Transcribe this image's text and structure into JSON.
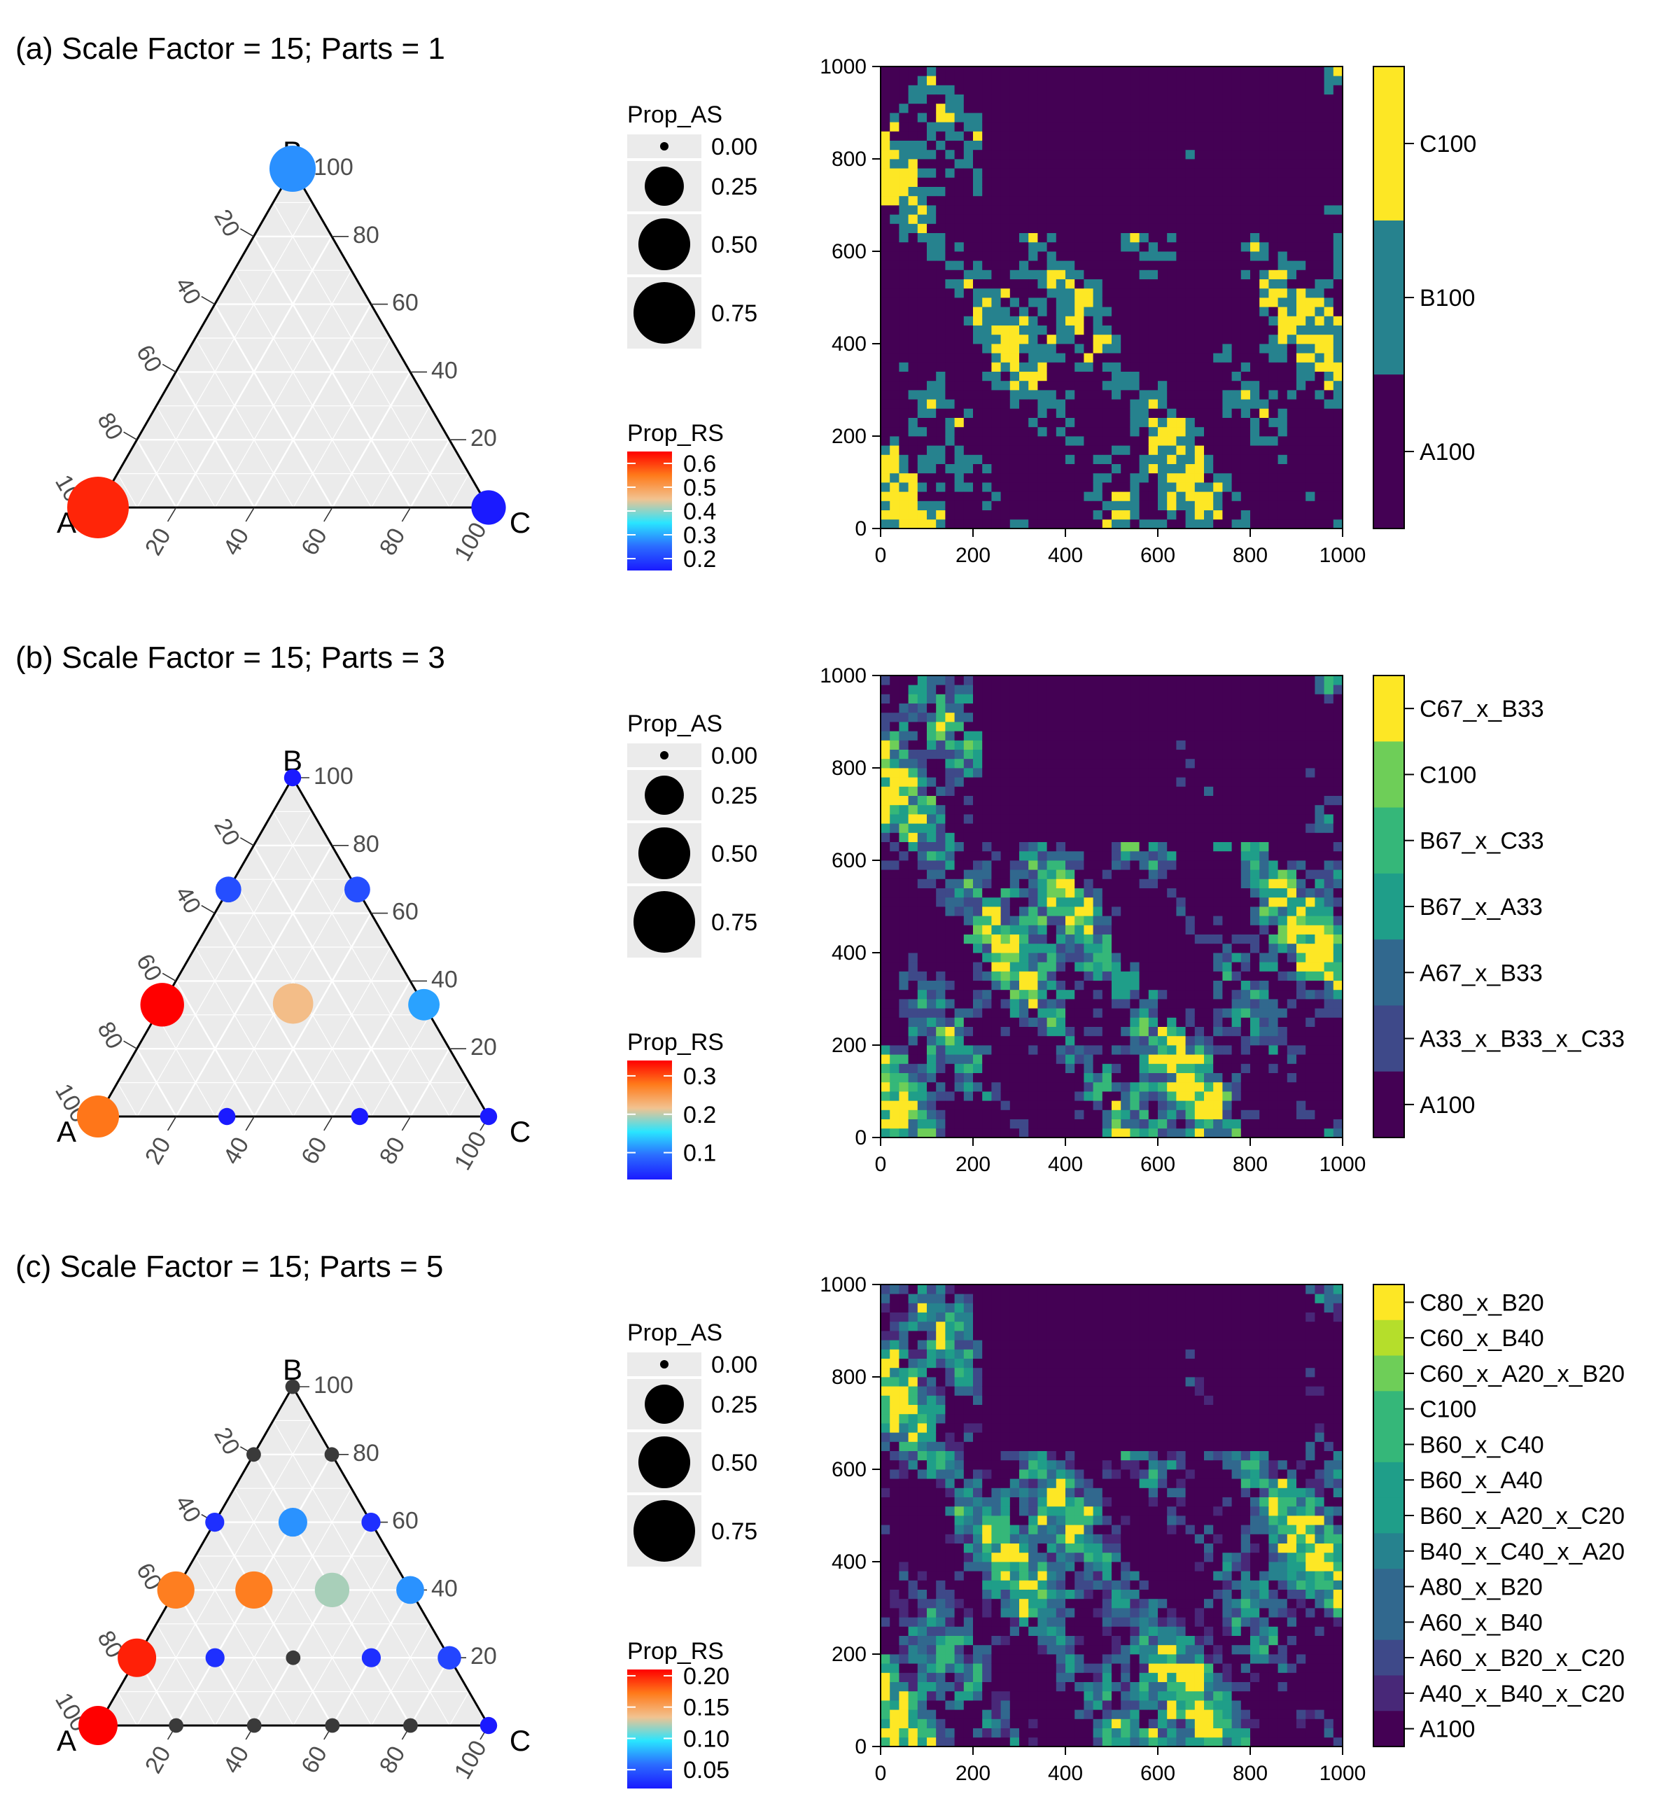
{
  "colors": {
    "panel_bg": "#ebebeb",
    "grid_line": "#ffffff",
    "viridis": [
      "#440154",
      "#482878",
      "#3e4989",
      "#31688e",
      "#26828e",
      "#1f9e89",
      "#35b779",
      "#6ece58",
      "#b5de2b",
      "#fde725"
    ],
    "prop_rs_gradient": [
      "#1a1aff",
      "#2b6bff",
      "#29e5ff",
      "#f2c290",
      "#ff7a1a",
      "#ff0000"
    ]
  },
  "chart_data": [
    {
      "type": "scatter",
      "subtype": "ternary",
      "title": "(a) Scale Factor = 15; Parts = 1",
      "vertex_labels": {
        "a": "A",
        "b": "B",
        "c": "C"
      },
      "axis_ticks": [
        "20",
        "40",
        "60",
        "80",
        "100"
      ],
      "size_legend": {
        "title": "Prop_AS",
        "labels": [
          "0.00",
          "0.25",
          "0.50",
          "0.75"
        ],
        "values": [
          0,
          0.25,
          0.5,
          0.75
        ]
      },
      "color_legend": {
        "title": "Prop_RS",
        "labels": [
          "0.6",
          "0.5",
          "0.4",
          "0.3",
          "0.2"
        ],
        "values": [
          0.6,
          0.5,
          0.4,
          0.3,
          0.2
        ],
        "min": 0.15,
        "max": 0.65
      },
      "points": [
        {
          "a": 100,
          "b": 0,
          "c": 0,
          "prop_as": 0.75,
          "prop_rs": 0.62
        },
        {
          "a": 0,
          "b": 100,
          "c": 0,
          "prop_as": 0.38,
          "prop_rs": 0.28
        },
        {
          "a": 0,
          "b": 0,
          "c": 100,
          "prop_as": 0.18,
          "prop_rs": 0.15
        }
      ]
    },
    {
      "type": "heatmap",
      "x_ticks": [
        "0",
        "200",
        "400",
        "600",
        "800",
        "1000"
      ],
      "y_ticks": [
        "0",
        "200",
        "400",
        "600",
        "800",
        "1000"
      ],
      "xlim": [
        0,
        1000
      ],
      "ylim": [
        0,
        1000
      ],
      "grid_size": 50,
      "legend": {
        "labels": [
          "C100",
          "B100",
          "A100"
        ],
        "color_index": [
          9,
          4,
          0
        ]
      },
      "levels": 3
    },
    {
      "type": "scatter",
      "subtype": "ternary",
      "title": "(b) Scale Factor = 15; Parts = 3",
      "vertex_labels": {
        "a": "A",
        "b": "B",
        "c": "C"
      },
      "axis_ticks": [
        "20",
        "40",
        "60",
        "80",
        "100"
      ],
      "size_legend": {
        "title": "Prop_AS",
        "labels": [
          "0.00",
          "0.25",
          "0.50",
          "0.75"
        ],
        "values": [
          0,
          0.25,
          0.5,
          0.75
        ]
      },
      "color_legend": {
        "title": "Prop_RS",
        "labels": [
          "0.3",
          "0.2",
          "0.1"
        ],
        "values": [
          0.3,
          0.2,
          0.1
        ],
        "min": 0.03,
        "max": 0.34
      },
      "points": [
        {
          "a": 100,
          "b": 0,
          "c": 0,
          "prop_as": 0.3,
          "prop_rs": 0.28
        },
        {
          "a": 0,
          "b": 100,
          "c": 0,
          "prop_as": 0.02,
          "prop_rs": 0.03
        },
        {
          "a": 0,
          "b": 0,
          "c": 100,
          "prop_as": 0.02,
          "prop_rs": 0.03
        },
        {
          "a": 67,
          "b": 33,
          "c": 0,
          "prop_as": 0.33,
          "prop_rs": 0.34
        },
        {
          "a": 33,
          "b": 67,
          "c": 0,
          "prop_as": 0.08,
          "prop_rs": 0.07
        },
        {
          "a": 0,
          "b": 67,
          "c": 33,
          "prop_as": 0.08,
          "prop_rs": 0.07
        },
        {
          "a": 0,
          "b": 33,
          "c": 67,
          "prop_as": 0.14,
          "prop_rs": 0.12
        },
        {
          "a": 67,
          "b": 0,
          "c": 33,
          "prop_as": 0.02,
          "prop_rs": 0.03
        },
        {
          "a": 33,
          "b": 0,
          "c": 67,
          "prop_as": 0.02,
          "prop_rs": 0.03
        },
        {
          "a": 33,
          "b": 33,
          "c": 33,
          "prop_as": 0.27,
          "prop_rs": 0.22
        }
      ]
    },
    {
      "type": "heatmap",
      "x_ticks": [
        "0",
        "200",
        "400",
        "600",
        "800",
        "1000"
      ],
      "y_ticks": [
        "0",
        "200",
        "400",
        "600",
        "800",
        "1000"
      ],
      "xlim": [
        0,
        1000
      ],
      "ylim": [
        0,
        1000
      ],
      "grid_size": 50,
      "legend": {
        "labels": [
          "C67_x_B33",
          "C100",
          "B67_x_C33",
          "B67_x_A33",
          "A67_x_B33",
          "A33_x_B33_x_C33",
          "A100"
        ],
        "color_index": [
          9,
          7,
          6,
          5,
          3,
          2,
          0
        ]
      },
      "levels": 7
    },
    {
      "type": "scatter",
      "subtype": "ternary",
      "title": "(c) Scale Factor = 15; Parts = 5",
      "vertex_labels": {
        "a": "A",
        "b": "B",
        "c": "C"
      },
      "axis_ticks": [
        "20",
        "40",
        "60",
        "80",
        "100"
      ],
      "size_legend": {
        "title": "Prop_AS",
        "labels": [
          "0.00",
          "0.25",
          "0.50",
          "0.75"
        ],
        "values": [
          0,
          0.25,
          0.5,
          0.75
        ]
      },
      "color_legend": {
        "title": "Prop_RS",
        "labels": [
          "0.20",
          "0.15",
          "0.10",
          "0.05"
        ],
        "values": [
          0.2,
          0.15,
          0.1,
          0.05
        ],
        "min": 0.02,
        "max": 0.21
      },
      "points": [
        {
          "a": 100,
          "b": 0,
          "c": 0,
          "prop_as": 0.25,
          "prop_rs": 0.21
        },
        {
          "a": 80,
          "b": 20,
          "c": 0,
          "prop_as": 0.24,
          "prop_rs": 0.2
        },
        {
          "a": 60,
          "b": 40,
          "c": 0,
          "prop_as": 0.22,
          "prop_rs": 0.17
        },
        {
          "a": 40,
          "b": 60,
          "c": 0,
          "prop_as": 0.03,
          "prop_rs": 0.03
        },
        {
          "a": 20,
          "b": 80,
          "c": 0,
          "prop_as": 0.01,
          "prop_rs": -1
        },
        {
          "a": 0,
          "b": 100,
          "c": 0,
          "prop_as": 0.01,
          "prop_rs": -1
        },
        {
          "a": 0,
          "b": 80,
          "c": 20,
          "prop_as": 0.01,
          "prop_rs": -1
        },
        {
          "a": 0,
          "b": 60,
          "c": 40,
          "prop_as": 0.03,
          "prop_rs": 0.03
        },
        {
          "a": 0,
          "b": 40,
          "c": 60,
          "prop_as": 0.1,
          "prop_rs": 0.07
        },
        {
          "a": 0,
          "b": 20,
          "c": 80,
          "prop_as": 0.06,
          "prop_rs": 0.04
        },
        {
          "a": 0,
          "b": 0,
          "c": 100,
          "prop_as": 0.02,
          "prop_rs": 0.02
        },
        {
          "a": 80,
          "b": 0,
          "c": 20,
          "prop_as": 0.01,
          "prop_rs": -1
        },
        {
          "a": 60,
          "b": 0,
          "c": 40,
          "prop_as": 0.01,
          "prop_rs": -1
        },
        {
          "a": 40,
          "b": 0,
          "c": 60,
          "prop_as": 0.01,
          "prop_rs": -1
        },
        {
          "a": 20,
          "b": 0,
          "c": 80,
          "prop_as": 0.01,
          "prop_rs": -1
        },
        {
          "a": 40,
          "b": 40,
          "c": 20,
          "prop_as": 0.22,
          "prop_rs": 0.17
        },
        {
          "a": 20,
          "b": 60,
          "c": 20,
          "prop_as": 0.11,
          "prop_rs": 0.07
        },
        {
          "a": 20,
          "b": 40,
          "c": 40,
          "prop_as": 0.18,
          "prop_rs": 0.12
        },
        {
          "a": 60,
          "b": 20,
          "c": 20,
          "prop_as": 0.03,
          "prop_rs": 0.03
        },
        {
          "a": 40,
          "b": 20,
          "c": 40,
          "prop_as": 0.01,
          "prop_rs": -1
        },
        {
          "a": 20,
          "b": 20,
          "c": 60,
          "prop_as": 0.03,
          "prop_rs": 0.03
        }
      ]
    },
    {
      "type": "heatmap",
      "x_ticks": [
        "0",
        "200",
        "400",
        "600",
        "800",
        "1000"
      ],
      "y_ticks": [
        "0",
        "200",
        "400",
        "600",
        "800",
        "1000"
      ],
      "xlim": [
        0,
        1000
      ],
      "ylim": [
        0,
        1000
      ],
      "grid_size": 50,
      "legend": {
        "labels": [
          "C80_x_B20",
          "C60_x_B40",
          "C60_x_A20_x_B20",
          "C100",
          "B60_x_C40",
          "B60_x_A40",
          "B60_x_A20_x_C20",
          "B40_x_C40_x_A20",
          "A80_x_B20",
          "A60_x_B40",
          "A60_x_B20_x_C20",
          "A40_x_B40_x_C20",
          "A100"
        ],
        "color_index": [
          9,
          8,
          7,
          6,
          6,
          5,
          5,
          4,
          3,
          3,
          2,
          1,
          0
        ]
      },
      "levels": 13
    }
  ]
}
